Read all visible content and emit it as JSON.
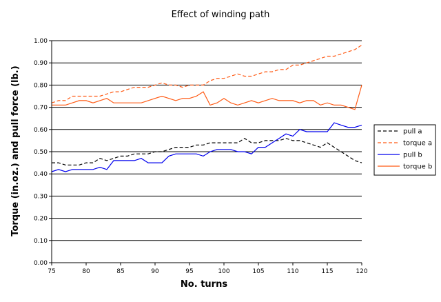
{
  "chart_data": {
    "type": "line",
    "title": "Effect of winding path",
    "xlabel": "No. turns",
    "ylabel": "Torque (in.oz.) and pull force (lb.)",
    "xlim": [
      75,
      120
    ],
    "ylim": [
      0,
      1.0
    ],
    "xticks": [
      "75",
      "80",
      "85",
      "90",
      "95",
      "100",
      "105",
      "110",
      "115",
      "120"
    ],
    "yticks": [
      "0.00",
      "0.10",
      "0.20",
      "0.30",
      "0.40",
      "0.50",
      "0.60",
      "0.70",
      "0.80",
      "0.90",
      "1.00"
    ],
    "grid": "horizontal",
    "legend_position": "right",
    "series": [
      {
        "name": "pull a",
        "color": "#000000",
        "dash": "dashed",
        "points": [
          [
            75,
            0.45
          ],
          [
            76,
            0.45
          ],
          [
            77,
            0.44
          ],
          [
            78,
            0.44
          ],
          [
            79,
            0.44
          ],
          [
            80,
            0.45
          ],
          [
            81,
            0.45
          ],
          [
            82,
            0.47
          ],
          [
            83,
            0.46
          ],
          [
            84,
            0.47
          ],
          [
            85,
            0.48
          ],
          [
            86,
            0.48
          ],
          [
            87,
            0.49
          ],
          [
            88,
            0.49
          ],
          [
            89,
            0.49
          ],
          [
            90,
            0.5
          ],
          [
            91,
            0.5
          ],
          [
            92,
            0.51
          ],
          [
            93,
            0.52
          ],
          [
            94,
            0.52
          ],
          [
            95,
            0.52
          ],
          [
            96,
            0.53
          ],
          [
            97,
            0.53
          ],
          [
            98,
            0.54
          ],
          [
            99,
            0.54
          ],
          [
            100,
            0.54
          ],
          [
            101,
            0.54
          ],
          [
            102,
            0.54
          ],
          [
            103,
            0.56
          ],
          [
            104,
            0.54
          ],
          [
            105,
            0.54
          ],
          [
            106,
            0.55
          ],
          [
            107,
            0.55
          ],
          [
            108,
            0.55
          ],
          [
            109,
            0.56
          ],
          [
            110,
            0.55
          ],
          [
            111,
            0.55
          ],
          [
            112,
            0.54
          ],
          [
            113,
            0.53
          ],
          [
            114,
            0.52
          ],
          [
            115,
            0.54
          ],
          [
            116,
            0.52
          ],
          [
            117,
            0.5
          ],
          [
            118,
            0.48
          ],
          [
            119,
            0.46
          ],
          [
            120,
            0.45
          ]
        ]
      },
      {
        "name": "torque a",
        "color": "#ff5a14",
        "dash": "dashed",
        "points": [
          [
            75,
            0.72
          ],
          [
            76,
            0.73
          ],
          [
            77,
            0.73
          ],
          [
            78,
            0.75
          ],
          [
            79,
            0.75
          ],
          [
            80,
            0.75
          ],
          [
            81,
            0.75
          ],
          [
            82,
            0.75
          ],
          [
            83,
            0.76
          ],
          [
            84,
            0.77
          ],
          [
            85,
            0.77
          ],
          [
            86,
            0.78
          ],
          [
            87,
            0.79
          ],
          [
            88,
            0.79
          ],
          [
            89,
            0.79
          ],
          [
            90,
            0.8
          ],
          [
            91,
            0.81
          ],
          [
            92,
            0.8
          ],
          [
            93,
            0.8
          ],
          [
            94,
            0.79
          ],
          [
            95,
            0.8
          ],
          [
            96,
            0.8
          ],
          [
            97,
            0.8
          ],
          [
            98,
            0.82
          ],
          [
            99,
            0.83
          ],
          [
            100,
            0.83
          ],
          [
            101,
            0.84
          ],
          [
            102,
            0.85
          ],
          [
            103,
            0.84
          ],
          [
            104,
            0.84
          ],
          [
            105,
            0.85
          ],
          [
            106,
            0.86
          ],
          [
            107,
            0.86
          ],
          [
            108,
            0.87
          ],
          [
            109,
            0.87
          ],
          [
            110,
            0.89
          ],
          [
            111,
            0.89
          ],
          [
            112,
            0.9
          ],
          [
            113,
            0.91
          ],
          [
            114,
            0.92
          ],
          [
            115,
            0.93
          ],
          [
            116,
            0.93
          ],
          [
            117,
            0.94
          ],
          [
            118,
            0.95
          ],
          [
            119,
            0.96
          ],
          [
            120,
            0.98
          ]
        ]
      },
      {
        "name": "pull b",
        "color": "#0000ee",
        "dash": "solid",
        "points": [
          [
            75,
            0.41
          ],
          [
            76,
            0.42
          ],
          [
            77,
            0.41
          ],
          [
            78,
            0.42
          ],
          [
            79,
            0.42
          ],
          [
            80,
            0.42
          ],
          [
            81,
            0.42
          ],
          [
            82,
            0.43
          ],
          [
            83,
            0.42
          ],
          [
            84,
            0.46
          ],
          [
            85,
            0.46
          ],
          [
            86,
            0.46
          ],
          [
            87,
            0.46
          ],
          [
            88,
            0.47
          ],
          [
            89,
            0.45
          ],
          [
            90,
            0.45
          ],
          [
            91,
            0.45
          ],
          [
            92,
            0.48
          ],
          [
            93,
            0.49
          ],
          [
            94,
            0.49
          ],
          [
            95,
            0.49
          ],
          [
            96,
            0.49
          ],
          [
            97,
            0.48
          ],
          [
            98,
            0.5
          ],
          [
            99,
            0.51
          ],
          [
            100,
            0.51
          ],
          [
            101,
            0.51
          ],
          [
            102,
            0.5
          ],
          [
            103,
            0.5
          ],
          [
            104,
            0.49
          ],
          [
            105,
            0.52
          ],
          [
            106,
            0.52
          ],
          [
            107,
            0.54
          ],
          [
            108,
            0.56
          ],
          [
            109,
            0.58
          ],
          [
            110,
            0.57
          ],
          [
            111,
            0.6
          ],
          [
            112,
            0.59
          ],
          [
            113,
            0.59
          ],
          [
            114,
            0.59
          ],
          [
            115,
            0.59
          ],
          [
            116,
            0.63
          ],
          [
            117,
            0.62
          ],
          [
            118,
            0.61
          ],
          [
            119,
            0.61
          ],
          [
            120,
            0.62
          ]
        ]
      },
      {
        "name": "torque b",
        "color": "#ff5a14",
        "dash": "solid",
        "points": [
          [
            75,
            0.71
          ],
          [
            76,
            0.71
          ],
          [
            77,
            0.71
          ],
          [
            78,
            0.72
          ],
          [
            79,
            0.73
          ],
          [
            80,
            0.73
          ],
          [
            81,
            0.72
          ],
          [
            82,
            0.73
          ],
          [
            83,
            0.74
          ],
          [
            84,
            0.72
          ],
          [
            85,
            0.72
          ],
          [
            86,
            0.72
          ],
          [
            87,
            0.72
          ],
          [
            88,
            0.72
          ],
          [
            89,
            0.73
          ],
          [
            90,
            0.74
          ],
          [
            91,
            0.75
          ],
          [
            92,
            0.74
          ],
          [
            93,
            0.73
          ],
          [
            94,
            0.74
          ],
          [
            95,
            0.74
          ],
          [
            96,
            0.75
          ],
          [
            97,
            0.77
          ],
          [
            98,
            0.71
          ],
          [
            99,
            0.72
          ],
          [
            100,
            0.74
          ],
          [
            101,
            0.72
          ],
          [
            102,
            0.71
          ],
          [
            103,
            0.72
          ],
          [
            104,
            0.73
          ],
          [
            105,
            0.72
          ],
          [
            106,
            0.73
          ],
          [
            107,
            0.74
          ],
          [
            108,
            0.73
          ],
          [
            109,
            0.73
          ],
          [
            110,
            0.73
          ],
          [
            111,
            0.72
          ],
          [
            112,
            0.73
          ],
          [
            113,
            0.73
          ],
          [
            114,
            0.71
          ],
          [
            115,
            0.72
          ],
          [
            116,
            0.71
          ],
          [
            117,
            0.71
          ],
          [
            118,
            0.7
          ],
          [
            119,
            0.69
          ],
          [
            120,
            0.8
          ]
        ]
      }
    ]
  }
}
